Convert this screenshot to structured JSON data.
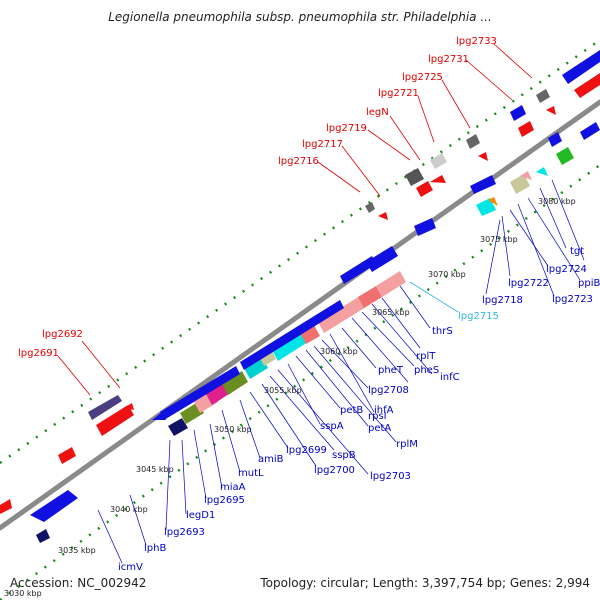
{
  "title": "Legionella pneumophila subsp. pneumophila str. Philadelphia ...",
  "footer": {
    "accession": "Accession: NC_002942",
    "topology": "Topology: circular; Length: 3,397,754 bp; Genes: 2,994",
    "cutoff": "3030 kbp"
  },
  "colors": {
    "forward_label": "#e00000",
    "reverse_label": "#0000c8",
    "highlight_label": "#33b5e5",
    "backbone": "#8a8a8a",
    "gene_blue": "#1010e0",
    "gene_red": "#ee1111"
  },
  "kbp_ticks": [
    "3035 kbp",
    "3040 kbp",
    "3045 kbp",
    "3050 kbp",
    "3055 kbp",
    "3060 kbp",
    "3065 kbp",
    "3070 kbp",
    "3075 kbp",
    "3080 kbp"
  ],
  "forward_genes": [
    "lpg2691",
    "lpg2692",
    "lpg2716",
    "lpg2717",
    "lpg2719",
    "legN",
    "lpg2721",
    "lpg2725",
    "lpg2731",
    "lpg2733"
  ],
  "reverse_genes": [
    "icmV",
    "lphB",
    "lpg2693",
    "legD1",
    "lpg2695",
    "miaA",
    "mutL",
    "amiB",
    "lpg2699",
    "lpg2700",
    "sspB",
    "lpg2703",
    "sspA",
    "rpsI",
    "petB",
    "petA",
    "rplM",
    "lpg2708",
    "ihfA",
    "pheT",
    "pheS",
    "infC",
    "rplT",
    "thrS",
    "lpg2715",
    "lpg2718",
    "lpg2722",
    "lpg2723",
    "lpg2724",
    "ppiB",
    "tgt"
  ]
}
